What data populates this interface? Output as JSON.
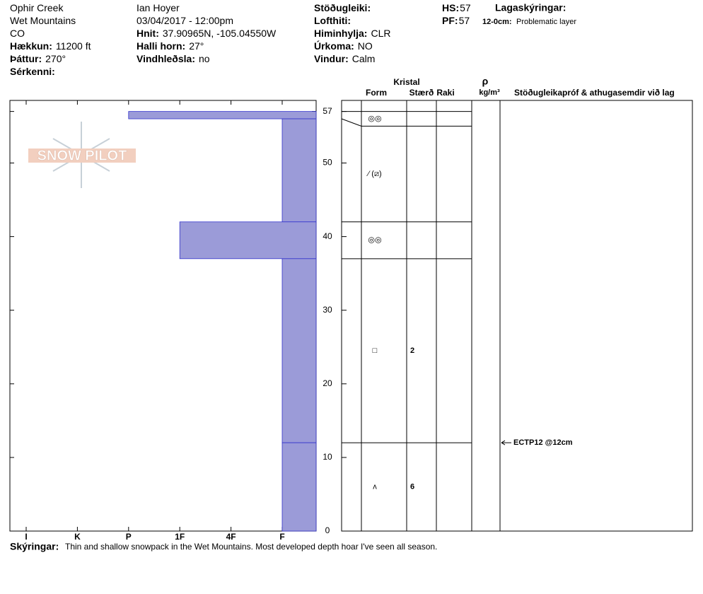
{
  "header": {
    "columns": [
      [
        {
          "value": "Ophir Creek"
        },
        {
          "value": "Wet Mountains"
        },
        {
          "value": "CO"
        },
        {
          "label": "Hækkun:",
          "value": "11200 ft"
        },
        {
          "label": "Þáttur:",
          "value": "270°"
        },
        {
          "label": "Sérkenni:"
        }
      ],
      [
        {
          "value": "Ian Hoyer"
        },
        {
          "value": "03/04/2017 - 12:00pm"
        },
        {
          "label": "Hnit:",
          "value": "37.90965N, -105.04550W"
        },
        {
          "label": "Halli horn:",
          "value": "27°"
        },
        {
          "label": "Vindhleðsla:",
          "value": "no"
        }
      ],
      [
        {
          "label": "Stöðugleiki:"
        },
        {
          "label": "Lofthiti:"
        },
        {
          "label": "Himinhylja:",
          "value": "CLR"
        },
        {
          "label": "Úrkoma:",
          "value": "NO"
        },
        {
          "label": "Vindur:",
          "value": "Calm"
        }
      ],
      [
        {
          "label": "HS:",
          "value": 57
        },
        {
          "label": "PF:",
          "value": 57
        }
      ]
    ],
    "notes_title": "Lagaskýringar:",
    "notes": [
      {
        "range": "12-0cm:",
        "text": "Problematic layer"
      }
    ]
  },
  "chart_data": {
    "type": "snow-profile",
    "logo": "SNOW PILOT",
    "hardness_levels": [
      "I",
      "K",
      "P",
      "1F",
      "4F",
      "F"
    ],
    "hardness_color": "#9b9bd8",
    "ylim": [
      0,
      58.5
    ],
    "yticks": [
      0,
      10,
      20,
      30,
      40,
      50,
      57
    ],
    "layers": [
      {
        "top": 57,
        "bottom": 56,
        "hardness": "P"
      },
      {
        "top": 56,
        "bottom": 42,
        "hardness": "F"
      },
      {
        "top": 42,
        "bottom": 37,
        "hardness": "1F"
      },
      {
        "top": 37,
        "bottom": 12,
        "hardness": "F"
      },
      {
        "top": 12,
        "bottom": 0,
        "hardness": "F"
      }
    ],
    "crystal_header": "Kristal",
    "columns": [
      "Form",
      "Stærð",
      "Raki"
    ],
    "density_header": {
      "symbol": "ρ",
      "unit": "kg/m³"
    },
    "comments_header": "Stöðugleikapróf & athugasemdir við lag",
    "grain_layers": [
      {
        "top": 57,
        "bottom": 55,
        "form": "◎◎"
      },
      {
        "top": 55,
        "bottom": 42,
        "form": "⁄ (⧄)"
      },
      {
        "top": 42,
        "bottom": 37,
        "form": "◎◎"
      },
      {
        "top": 37,
        "bottom": 12,
        "form": "□",
        "size": "2"
      },
      {
        "top": 12,
        "bottom": 0,
        "form": "ʌ",
        "size": "6"
      }
    ],
    "tests": [
      {
        "depth": 12,
        "label": "ECTP12 @12cm"
      }
    ]
  },
  "footer": {
    "label": "Skýringar:",
    "text": "Thin and shallow snowpack in the Wet Mountains. Most developed depth hoar I've seen all season."
  }
}
